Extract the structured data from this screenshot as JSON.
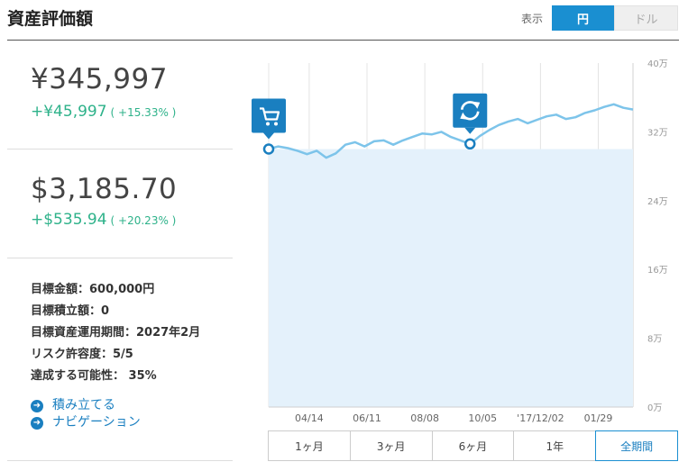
{
  "header": {
    "title": "資産評価額",
    "display_label": "表示",
    "currency_options": [
      "円",
      "ドル"
    ],
    "currency_selected": "円"
  },
  "summary": {
    "jpy": {
      "amount": "¥345,997",
      "gain": "+¥45,997",
      "gain_pct": "( +15.33% )"
    },
    "usd": {
      "amount": "$3,185.70",
      "gain": "+$535.94",
      "gain_pct": "( +20.23% )"
    }
  },
  "goals": [
    "目標金額：600,000円",
    "目標積立額：0",
    "目標資産運用期間：2027年2月",
    "リスク許容度：5/5",
    "達成する可能性： 35%"
  ],
  "links": [
    "積み立てる",
    "ナビゲーション"
  ],
  "range_buttons": [
    "1ヶ月",
    "3ヶ月",
    "6ヶ月",
    "1年",
    "全期間"
  ],
  "range_selected": "全期間",
  "colors": {
    "accent": "#1a8fd1",
    "gain": "#2eb28a",
    "line": "#7dc4ea",
    "fill": "#e4f1fb"
  },
  "chart_data": {
    "type": "area",
    "xlabel": "",
    "ylabel": "",
    "x_ticks": [
      "04/14",
      "06/11",
      "08/08",
      "10/05",
      "'17/12/02",
      "01/29"
    ],
    "y_ticks": [
      "0万",
      "8万",
      "16万",
      "24万",
      "32万",
      "40万"
    ],
    "ylim": [
      0,
      40
    ],
    "y_unit": "万",
    "invested_baseline": 30,
    "series": [
      {
        "values": [
          30.0,
          30.3,
          30.1,
          29.8,
          29.4,
          29.8,
          29.0,
          29.5,
          30.5,
          30.8,
          30.3,
          30.9,
          31.0,
          30.5,
          31.0,
          31.4,
          31.8,
          31.7,
          32.0,
          31.4,
          31.0,
          30.6,
          31.5,
          32.2,
          32.8,
          33.2,
          33.5,
          33.0,
          33.4,
          33.8,
          34.0,
          33.5,
          33.7,
          34.2,
          34.5,
          34.9,
          35.2,
          34.8,
          34.6
        ]
      }
    ],
    "markers": [
      {
        "index": 0,
        "icon": "cart-icon"
      },
      {
        "index": 21,
        "icon": "refresh-icon"
      }
    ]
  }
}
